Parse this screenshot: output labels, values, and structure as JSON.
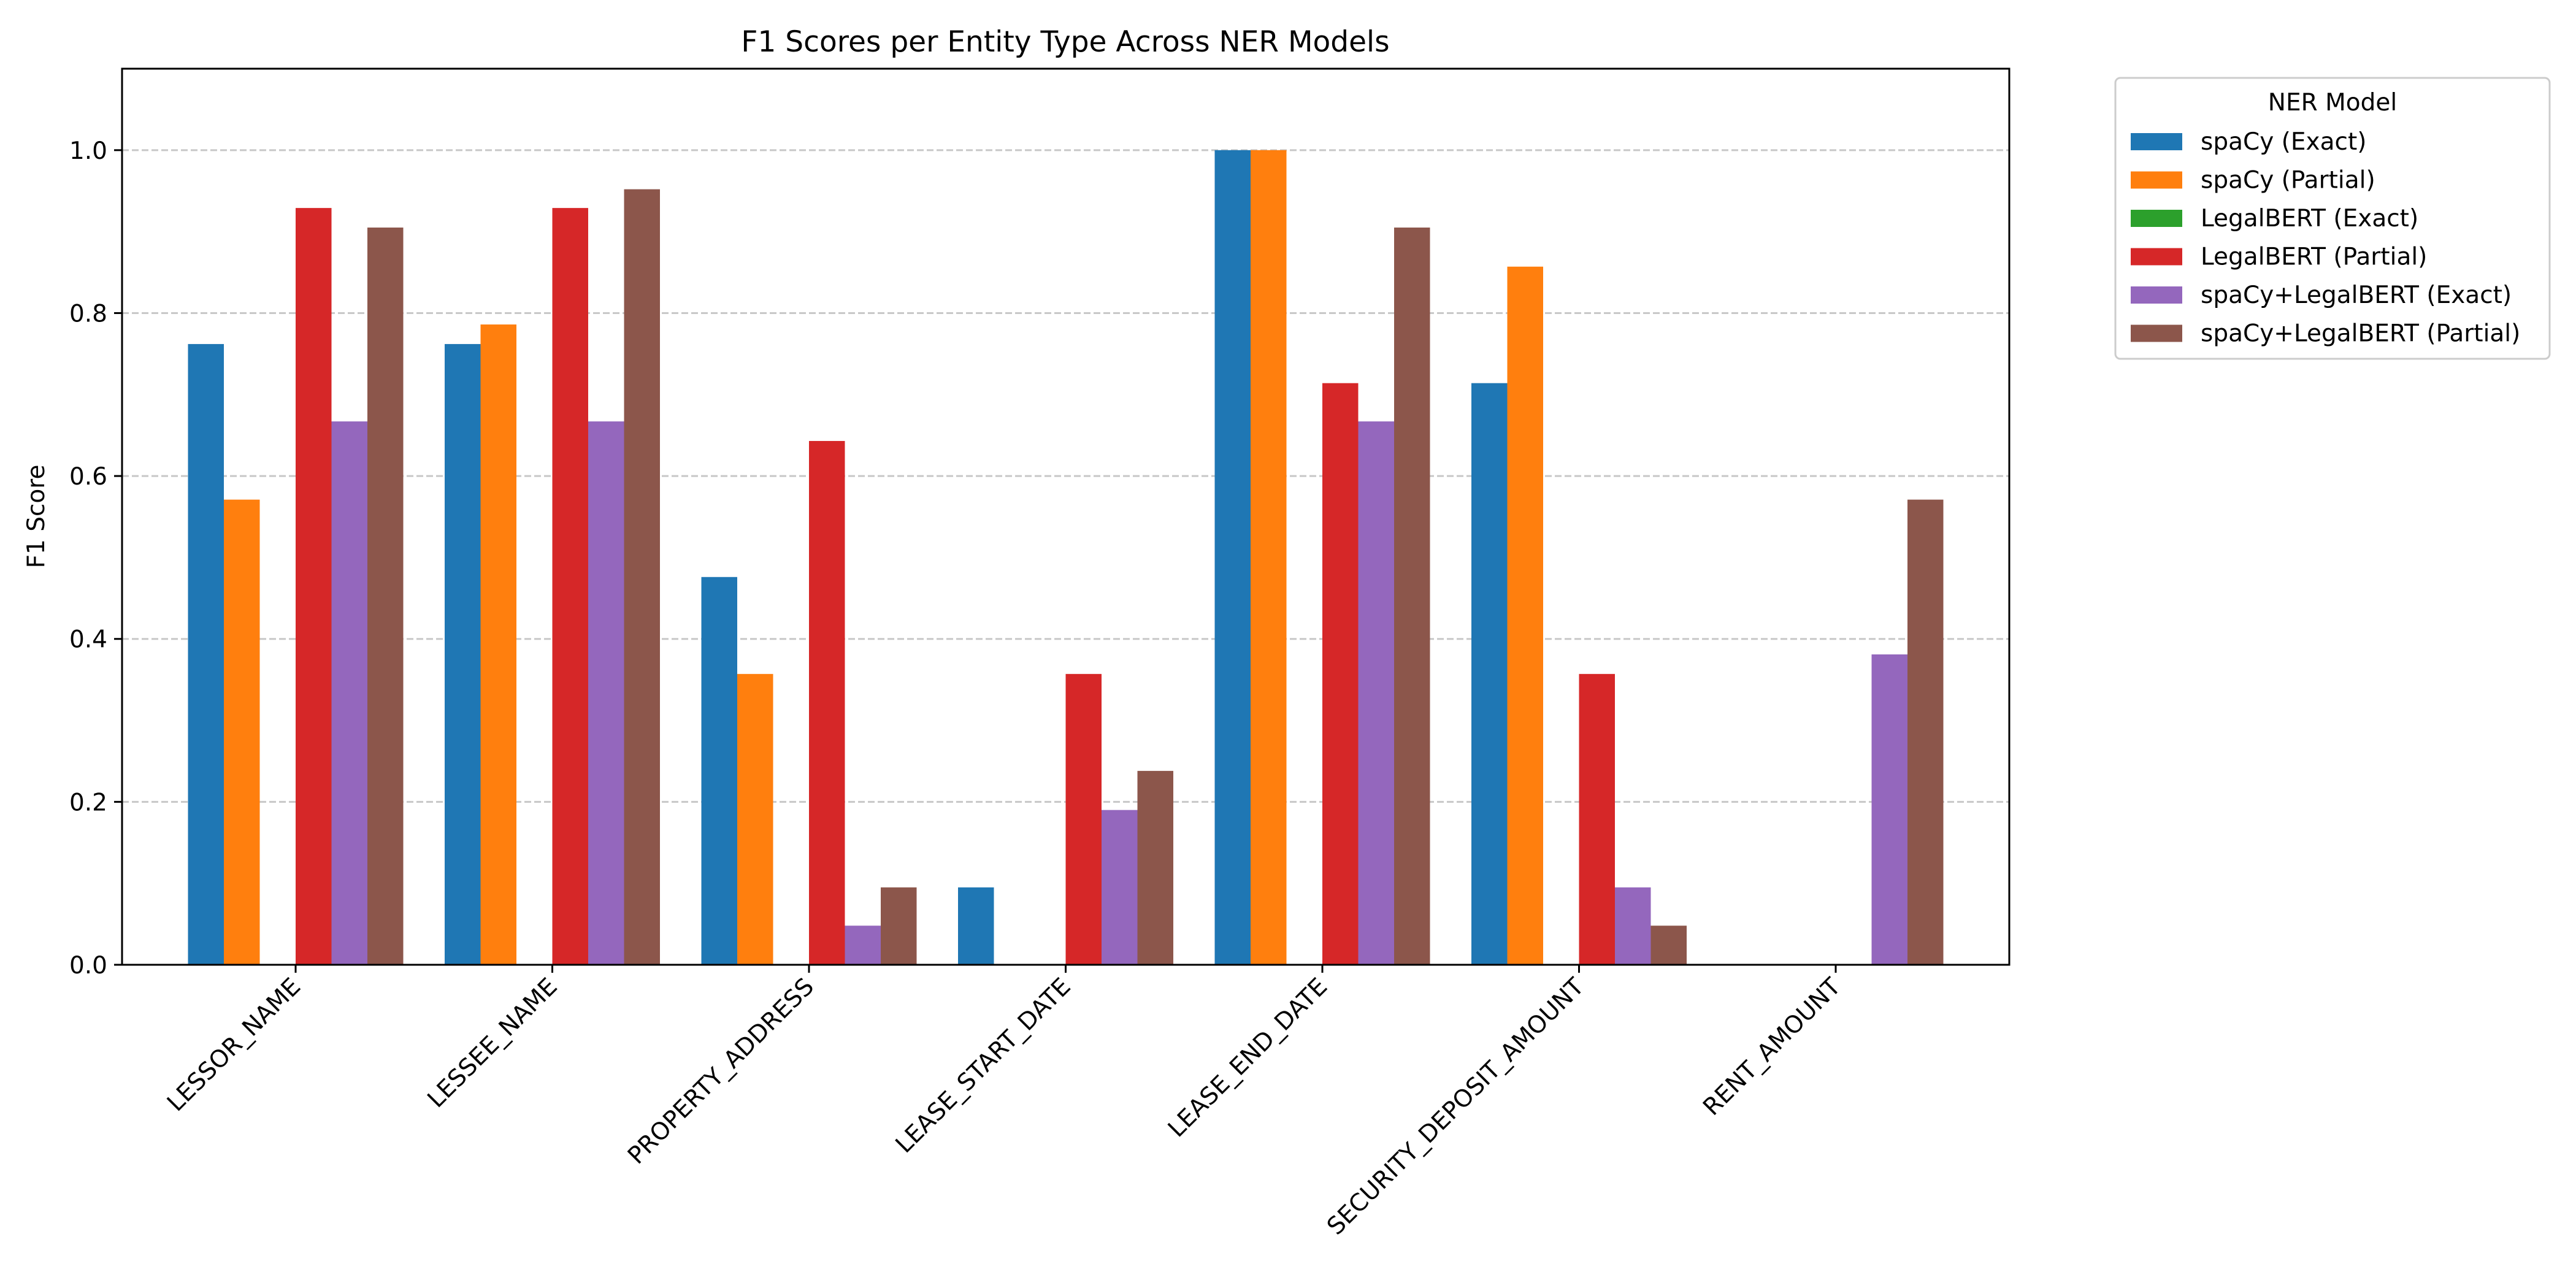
{
  "chart_data": {
    "type": "bar",
    "title": "F1 Scores per Entity Type Across NER Models",
    "xlabel": "",
    "ylabel": "F1 Score",
    "ylim": [
      0,
      1.1
    ],
    "yticks": [
      "0.0",
      "0.2",
      "0.4",
      "0.6",
      "0.8",
      "1.0"
    ],
    "grid": "y, dashed",
    "legend_title": "NER Model",
    "legend_placement": "outside-right-top",
    "categories": [
      "LESSOR_NAME",
      "LESSEE_NAME",
      "PROPERTY_ADDRESS",
      "LEASE_START_DATE",
      "LEASE_END_DATE",
      "SECURITY_DEPOSIT_AMOUNT",
      "RENT_AMOUNT"
    ],
    "series": [
      {
        "name": "spaCy (Exact)",
        "color": "#1f77b4",
        "values": [
          0.762,
          0.762,
          0.476,
          0.095,
          1.0,
          0.714,
          0.0
        ]
      },
      {
        "name": "spaCy (Partial)",
        "color": "#ff7f0e",
        "values": [
          0.571,
          0.786,
          0.357,
          0.0,
          1.0,
          0.857,
          0.0
        ]
      },
      {
        "name": "LegalBERT (Exact)",
        "color": "#2ca02c",
        "values": [
          0.0,
          0.0,
          0.0,
          0.0,
          0.0,
          0.0,
          0.0
        ]
      },
      {
        "name": "LegalBERT (Partial)",
        "color": "#d62728",
        "values": [
          0.929,
          0.929,
          0.643,
          0.357,
          0.714,
          0.357,
          0.0
        ]
      },
      {
        "name": "spaCy+LegalBERT (Exact)",
        "color": "#9467bd",
        "values": [
          0.667,
          0.667,
          0.048,
          0.19,
          0.667,
          0.095,
          0.381
        ]
      },
      {
        "name": "spaCy+LegalBERT (Partial)",
        "color": "#8c564b",
        "values": [
          0.905,
          0.952,
          0.095,
          0.238,
          0.905,
          0.048,
          0.571
        ]
      }
    ]
  }
}
